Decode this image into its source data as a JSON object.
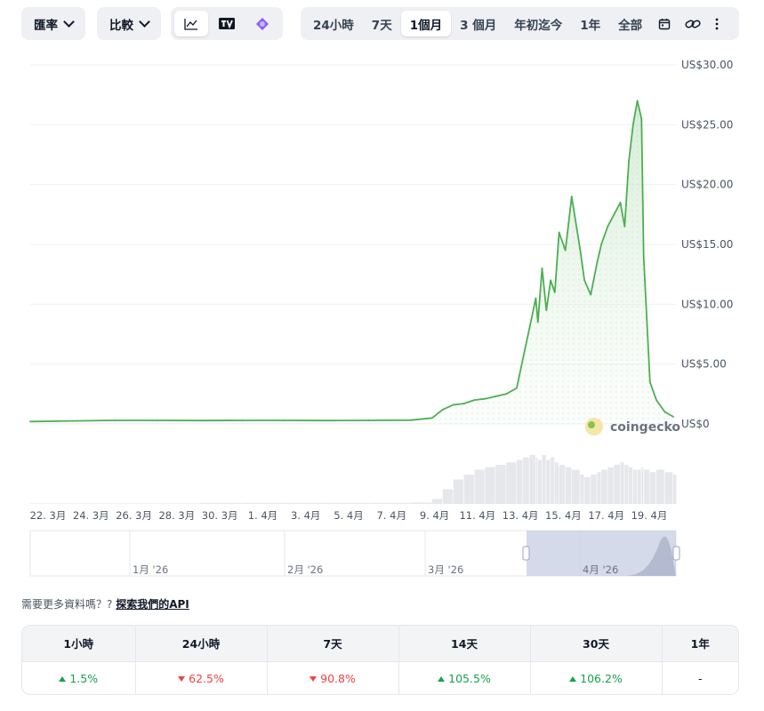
{
  "toolbar": {
    "rate_label": "匯率",
    "compare_label": "比較",
    "chart_types": [
      {
        "icon": "line-chart-icon",
        "active": true
      },
      {
        "icon": "tradingview-icon",
        "active": false
      },
      {
        "icon": "geckoterminal-icon",
        "active": false
      }
    ],
    "ranges": [
      {
        "label": "24小時",
        "active": false
      },
      {
        "label": "7天",
        "active": false
      },
      {
        "label": "1個月",
        "active": true
      },
      {
        "label": "3 個月",
        "active": false
      },
      {
        "label": "年初迄今",
        "active": false
      },
      {
        "label": "1年",
        "active": false
      },
      {
        "label": "全部",
        "active": false
      }
    ],
    "extra_icons": [
      "calendar-icon",
      "link-icon",
      "more-icon"
    ]
  },
  "watermark": "coingecko",
  "chart_data": {
    "type": "area",
    "y_ticks": [
      "US$30.00",
      "US$25.00",
      "US$20.00",
      "US$15.00",
      "US$10.00",
      "US$5.00",
      "US$0"
    ],
    "ylim": [
      0,
      30
    ],
    "x_ticks": [
      "22. 3月",
      "24. 3月",
      "26. 3月",
      "28. 3月",
      "30. 3月",
      "1. 4月",
      "3. 4月",
      "5. 4月",
      "7. 4月",
      "9. 4月",
      "11. 4月",
      "13. 4月",
      "15. 4月",
      "17. 4月",
      "19. 4月"
    ],
    "x": [
      "3/21",
      "3/23",
      "3/25",
      "3/27",
      "3/29",
      "3/31",
      "4/2",
      "4/4",
      "4/6",
      "4/8",
      "4/9",
      "4/9.5",
      "4/10",
      "4/10.5",
      "4/11",
      "4/11.5",
      "4/12",
      "4/12.5",
      "4/13",
      "4/13.3",
      "4/13.6",
      "4/13.9",
      "4/14",
      "4/14.2",
      "4/14.4",
      "4/14.6",
      "4/14.8",
      "4/15",
      "4/15.3",
      "4/15.6",
      "4/16",
      "4/16.2",
      "4/16.5",
      "4/16.8",
      "4/17",
      "4/17.3",
      "4/17.6",
      "4/17.9",
      "4/18.1",
      "4/18.3",
      "4/18.5",
      "4/18.7",
      "4/18.9",
      "4/19",
      "4/19.3",
      "4/19.6",
      "4/20",
      "4/20.4"
    ],
    "values": [
      0.2,
      0.25,
      0.3,
      0.3,
      0.28,
      0.3,
      0.3,
      0.28,
      0.3,
      0.32,
      0.5,
      1.2,
      1.6,
      1.7,
      2.0,
      2.1,
      2.3,
      2.5,
      3.0,
      5.5,
      8.0,
      10.5,
      8.5,
      13.0,
      9.5,
      12.0,
      11.0,
      16.0,
      14.5,
      19.0,
      14.5,
      12.0,
      10.8,
      13.5,
      15.0,
      16.5,
      17.5,
      18.5,
      16.5,
      22.0,
      25.0,
      27.0,
      25.5,
      14.0,
      3.5,
      2.0,
      1.0,
      0.6
    ],
    "volume": [
      0.01,
      0.01,
      0.01,
      0.01,
      0.02,
      0.02,
      0.02,
      0.02,
      0.02,
      0.03,
      0.1,
      0.3,
      0.5,
      0.6,
      0.7,
      0.75,
      0.8,
      0.85,
      0.9,
      0.95,
      1.0,
      0.95,
      0.9,
      1.0,
      0.9,
      0.95,
      0.85,
      0.8,
      0.75,
      0.7,
      0.6,
      0.55,
      0.6,
      0.65,
      0.7,
      0.75,
      0.8,
      0.85,
      0.8,
      0.75,
      0.7,
      0.7,
      0.75,
      0.7,
      0.65,
      0.7,
      0.65,
      0.6
    ]
  },
  "navigator_labels": [
    "1月 '26",
    "2月 '26",
    "3月 '26",
    "4月 '26"
  ],
  "api_promo": {
    "question": "需要更多資料嗎？?",
    "link_label": "探索我們的API"
  },
  "performance": {
    "headers": [
      "1小時",
      "24小時",
      "7天",
      "14天",
      "30天",
      "1年"
    ],
    "values": [
      {
        "text": "1.5%",
        "dir": "up"
      },
      {
        "text": "62.5%",
        "dir": "down"
      },
      {
        "text": "90.8%",
        "dir": "down"
      },
      {
        "text": "105.5%",
        "dir": "up"
      },
      {
        "text": "106.2%",
        "dir": "up"
      },
      {
        "text": "-",
        "dir": "none"
      }
    ]
  },
  "colors": {
    "line": "#4caf50",
    "area_top": "#c8e6c9",
    "navigator_selection": "#c7cde4",
    "up": "#16a34a",
    "down": "#ef4444"
  }
}
